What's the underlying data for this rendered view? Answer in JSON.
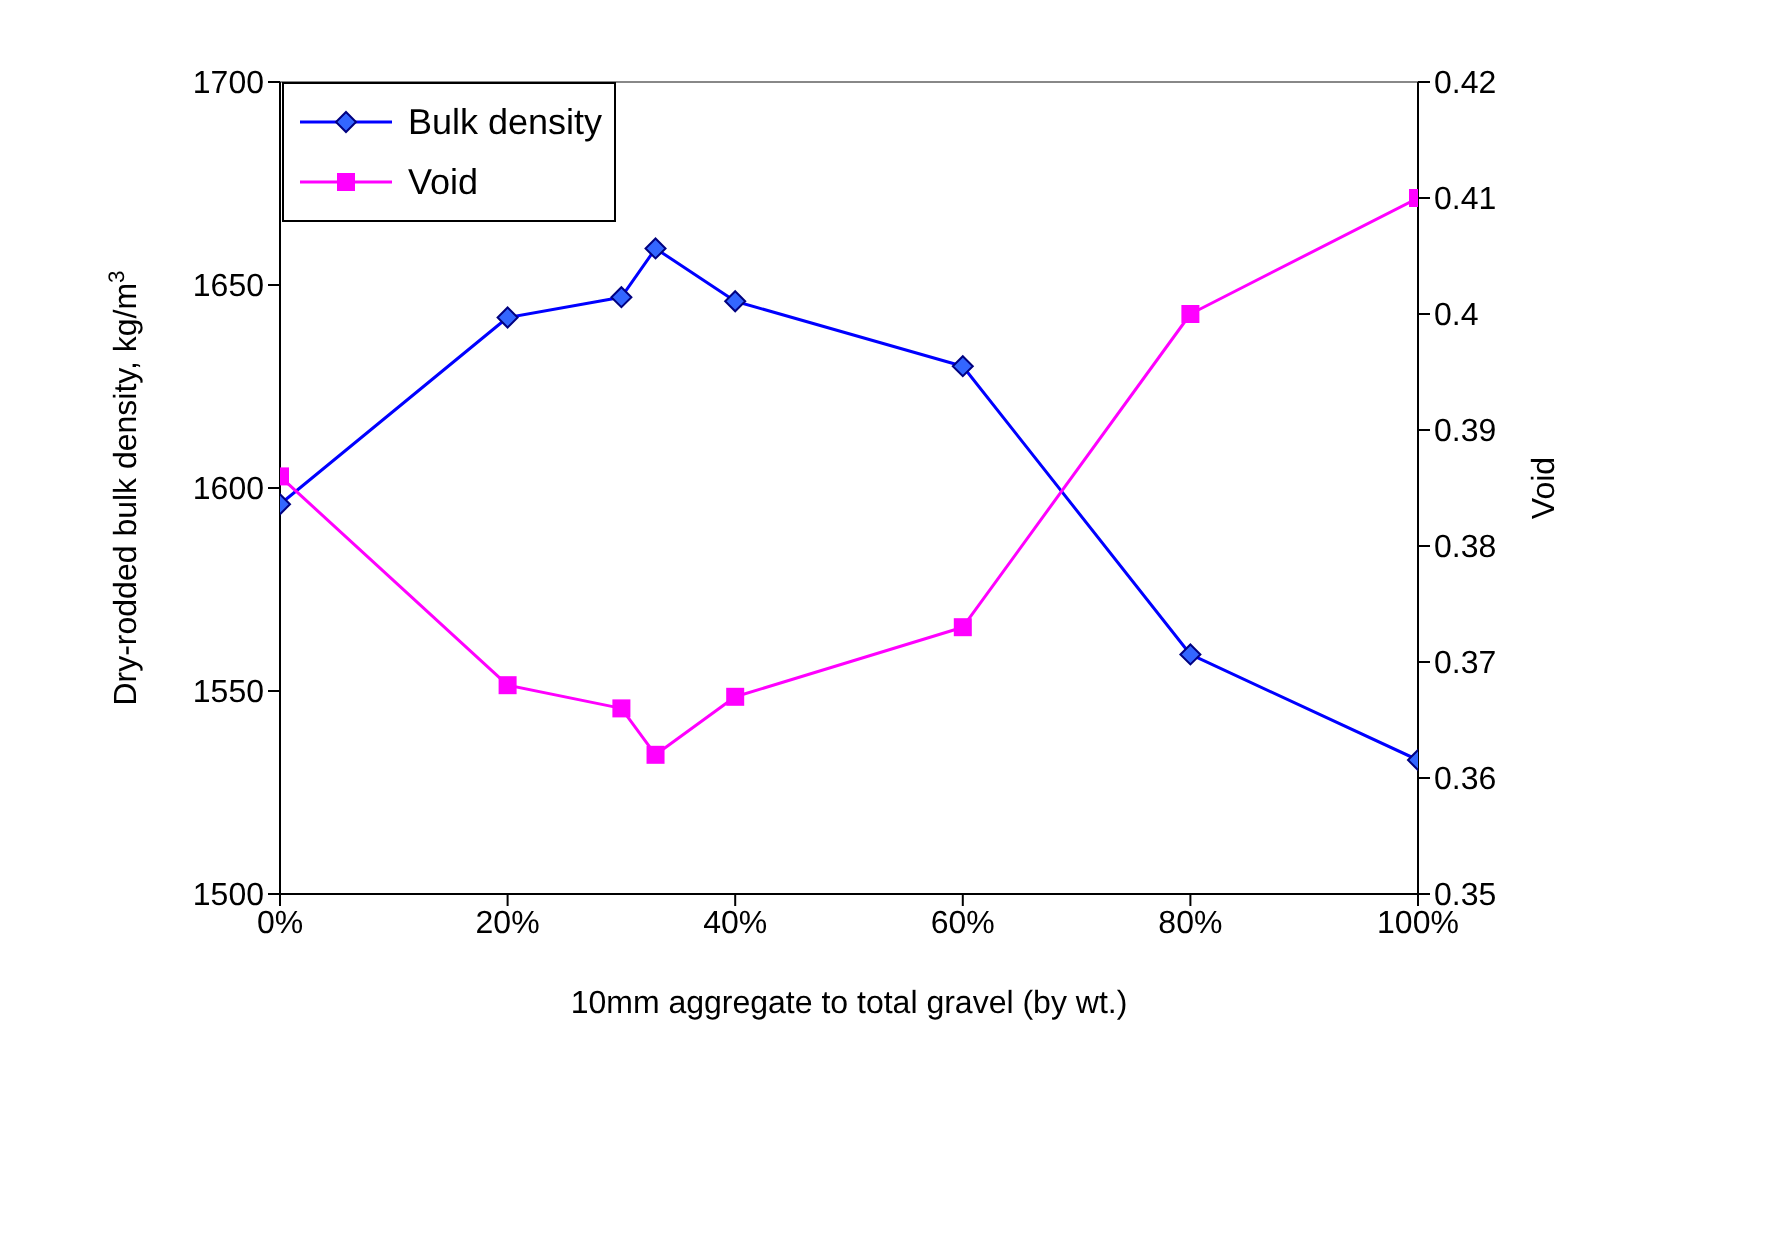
{
  "chart_data": {
    "type": "line",
    "xlabel": "10mm aggregate to total gravel (by wt.)",
    "ylabel": "Dry-rodded bulk density, kg/m$^{3}$",
    "y2label": "Void",
    "x": [
      0,
      0.2,
      0.3,
      0.33,
      0.4,
      0.6,
      0.8,
      1.0
    ],
    "xlim": [
      0,
      1
    ],
    "xticks": [
      {
        "value": 0,
        "label": "0%"
      },
      {
        "value": 0.2,
        "label": "20%"
      },
      {
        "value": 0.4,
        "label": "40%"
      },
      {
        "value": 0.6,
        "label": "60%"
      },
      {
        "value": 0.8,
        "label": "80%"
      },
      {
        "value": 1,
        "label": "100%"
      }
    ],
    "ylim": [
      1500,
      1700
    ],
    "yticks": [
      1500,
      1550,
      1600,
      1650,
      1700
    ],
    "y2lim": [
      0.35,
      0.42
    ],
    "y2ticks": [
      0.35,
      0.36,
      0.37,
      0.38,
      0.39,
      0.4,
      0.41,
      0.42
    ],
    "series": [
      {
        "name": "Bulk density",
        "color": "#0000ff",
        "marker": "diamond",
        "values": [
          1596,
          1642,
          1647,
          1659,
          1646,
          1630,
          1559,
          1533
        ]
      },
      {
        "name": "Void",
        "color": "#ff00ff",
        "marker": "square",
        "axis": "y2",
        "values": [
          0.386,
          0.368,
          0.366,
          0.362,
          0.367,
          0.373,
          0.4,
          0.41
        ]
      }
    ],
    "grid": false,
    "legend": "top left"
  }
}
